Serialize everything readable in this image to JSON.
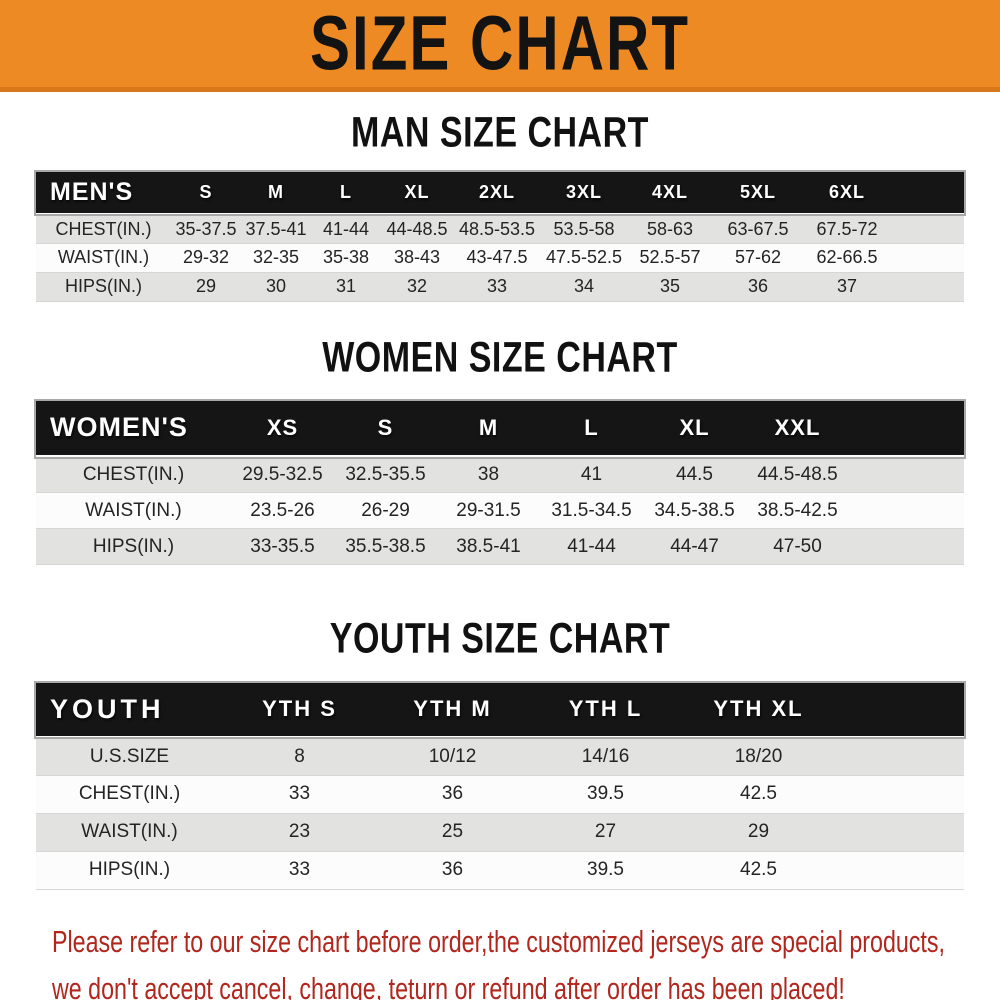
{
  "banner": {
    "title": "SIZE CHART"
  },
  "colors": {
    "banner_orange": "#ED8A23",
    "banner_shadow": "#D9771B",
    "header_black": "#151515",
    "header_text": "#FFFFFF",
    "row_gray": "#E2E2E1",
    "row_white": "#FCFCFC",
    "title_black": "#111111",
    "disclaimer_red": "#B1271E",
    "body_text": "#242424"
  },
  "sections": [
    {
      "id": "men",
      "title": "MAN SIZE CHART",
      "table": {
        "header_label": "MEN'S",
        "columns": [
          "S",
          "M",
          "L",
          "XL",
          "2XL",
          "3XL",
          "4XL",
          "5XL",
          "6XL"
        ],
        "rows": [
          {
            "label": "CHEST(IN.)",
            "values": [
              "35-37.5",
              "37.5-41",
              "41-44",
              "44-48.5",
              "48.5-53.5",
              "53.5-58",
              "58-63",
              "63-67.5",
              "67.5-72"
            ]
          },
          {
            "label": "WAIST(IN.)",
            "values": [
              "29-32",
              "32-35",
              "35-38",
              "38-43",
              "43-47.5",
              "47.5-52.5",
              "52.5-57",
              "57-62",
              "62-66.5"
            ]
          },
          {
            "label": "HIPS(IN.)",
            "values": [
              "29",
              "30",
              "31",
              "32",
              "33",
              "34",
              "35",
              "36",
              "37"
            ]
          }
        ]
      }
    },
    {
      "id": "women",
      "title": "WOMEN SIZE CHART",
      "table": {
        "header_label": "WOMEN'S",
        "columns": [
          "XS",
          "S",
          "M",
          "L",
          "XL",
          "XXL"
        ],
        "rows": [
          {
            "label": "CHEST(IN.)",
            "values": [
              "29.5-32.5",
              "32.5-35.5",
              "38",
              "41",
              "44.5",
              "44.5-48.5"
            ]
          },
          {
            "label": "WAIST(IN.)",
            "values": [
              "23.5-26",
              "26-29",
              "29-31.5",
              "31.5-34.5",
              "34.5-38.5",
              "38.5-42.5"
            ]
          },
          {
            "label": "HIPS(IN.)",
            "values": [
              "33-35.5",
              "35.5-38.5",
              "38.5-41",
              "41-44",
              "44-47",
              "47-50"
            ]
          }
        ]
      }
    },
    {
      "id": "youth",
      "title": "YOUTH SIZE CHART",
      "table": {
        "header_label": "YOUTH",
        "columns": [
          "YTH S",
          "YTH M",
          "YTH L",
          "YTH XL"
        ],
        "rows": [
          {
            "label": "U.S.SIZE",
            "values": [
              "8",
              "10/12",
              "14/16",
              "18/20"
            ]
          },
          {
            "label": "CHEST(IN.)",
            "values": [
              "33",
              "36",
              "39.5",
              "42.5"
            ]
          },
          {
            "label": "WAIST(IN.)",
            "values": [
              "23",
              "25",
              "27",
              "29"
            ]
          },
          {
            "label": "HIPS(IN.)",
            "values": [
              "33",
              "36",
              "39.5",
              "42.5"
            ]
          }
        ]
      }
    }
  ],
  "disclaimer": {
    "line1": "Please refer to our size chart before order,the customized jerseys are special products,",
    "line2": "we don't accept cancel, change, teturn or refund after order has been placed!"
  }
}
